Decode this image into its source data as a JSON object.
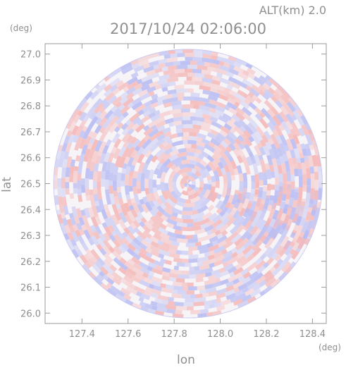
{
  "header": {
    "altitude_label": "ALT(km) 2.0",
    "datetime": "2017/10/24 02:06:00"
  },
  "chart_data": {
    "type": "heatmap",
    "title": "2017/10/24 02:06:00",
    "xlabel": "lon",
    "ylabel": "lat",
    "x_unit": "(deg)",
    "y_unit": "(deg)",
    "xlim": [
      127.24,
      128.46
    ],
    "ylim": [
      25.96,
      27.04
    ],
    "x_ticks": [
      {
        "value": 127.4,
        "label": "127.4"
      },
      {
        "value": 127.6,
        "label": "127.6"
      },
      {
        "value": 127.8,
        "label": "127.8"
      },
      {
        "value": 128.0,
        "label": "128.0"
      },
      {
        "value": 128.2,
        "label": "128.2"
      },
      {
        "value": 128.4,
        "label": "128.4"
      }
    ],
    "y_ticks": [
      {
        "value": 26.0,
        "label": "26.0"
      },
      {
        "value": 26.1,
        "label": "26.1"
      },
      {
        "value": 26.2,
        "label": "26.2"
      },
      {
        "value": 26.3,
        "label": "26.3"
      },
      {
        "value": 26.4,
        "label": "26.4"
      },
      {
        "value": 26.5,
        "label": "26.5"
      },
      {
        "value": 26.6,
        "label": "26.6"
      },
      {
        "value": 26.7,
        "label": "26.7"
      },
      {
        "value": 26.8,
        "label": "26.8"
      },
      {
        "value": 26.9,
        "label": "26.9"
      },
      {
        "value": 27.0,
        "label": "27.0"
      }
    ],
    "radar_center": {
      "lon": 127.86,
      "lat": 26.5
    },
    "radar_range_deg_lat": 0.52,
    "grid": false,
    "colors": {
      "positive": "#f4b8b8",
      "negative": "#b9bdf2",
      "frame": "#9a9a9a",
      "text": "#8f8f8f"
    }
  }
}
